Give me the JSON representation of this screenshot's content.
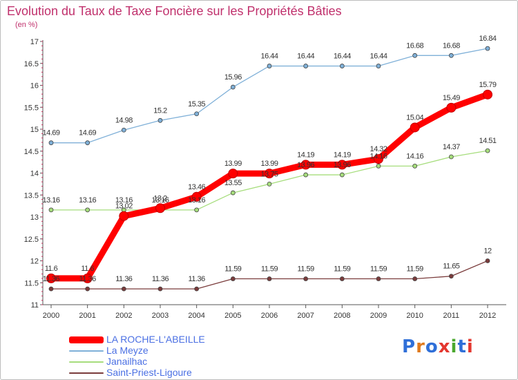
{
  "title": "Evolution du Taux de Taxe Foncière sur les Propriétés Bâties",
  "subtitle": "(en %)",
  "logo": {
    "text": "Proxiti",
    "letter_colors": [
      "#2f6fd8",
      "#e07a1e",
      "#2f6fd8",
      "#e4372f",
      "#4aa82e",
      "#2f6fd8",
      "#e4372f"
    ]
  },
  "chart_data": {
    "type": "line",
    "x": [
      "2000",
      "2001",
      "2002",
      "2003",
      "2004",
      "2005",
      "2006",
      "2007",
      "2008",
      "2009",
      "2010",
      "2011",
      "2012"
    ],
    "ylim": [
      11,
      17
    ],
    "yticks": [
      "11",
      "11.5",
      "12",
      "12.5",
      "13",
      "13.5",
      "14",
      "14.5",
      "15",
      "15.5",
      "16",
      "16.5",
      "17"
    ],
    "grid": false,
    "legend_position": "bottom-left",
    "series": [
      {
        "name": "LA ROCHE-L'ABEILLE",
        "color": "#ff0000",
        "values": [
          11.6,
          11.6,
          13.02,
          13.2,
          13.46,
          13.99,
          13.99,
          14.19,
          14.19,
          14.32,
          15.04,
          15.49,
          15.79
        ],
        "labels": [
          "11.6",
          "11.6",
          "13.02",
          "13.2",
          "13.46",
          "13.99",
          "13.99",
          "14.19",
          "14.19",
          "14.32",
          "15.04",
          "15.49",
          "15.79"
        ]
      },
      {
        "name": "La Meyze",
        "color": "#7fb0d8",
        "values": [
          14.69,
          14.69,
          14.98,
          15.2,
          15.35,
          15.96,
          16.44,
          16.44,
          16.44,
          16.44,
          16.68,
          16.68,
          16.84
        ],
        "labels": [
          "14.69",
          "14.69",
          "14.98",
          "15.2",
          "15.35",
          "15.96",
          "16.44",
          "16.44",
          "16.44",
          "16.44",
          "16.68",
          "16.68",
          "16.84"
        ]
      },
      {
        "name": "Janailhac",
        "color": "#a6dd7c",
        "values": [
          13.16,
          13.16,
          13.16,
          13.16,
          13.16,
          13.55,
          13.75,
          13.96,
          13.96,
          14.16,
          14.16,
          14.37,
          14.51
        ],
        "labels": [
          "13.16",
          "13.16",
          "13.16",
          "13.16",
          "13.16",
          "13.55",
          "13.75",
          "13.96",
          "13.96",
          "14.16",
          "14.16",
          "14.37",
          "14.51"
        ]
      },
      {
        "name": "Saint-Priest-Ligoure",
        "color": "#7a3b3b",
        "values": [
          11.36,
          11.36,
          11.36,
          11.36,
          11.36,
          11.59,
          11.59,
          11.59,
          11.59,
          11.59,
          11.59,
          11.65,
          12
        ],
        "labels": [
          "11.36",
          "11.36",
          "11.36",
          "11.36",
          "11.36",
          "11.59",
          "11.59",
          "11.59",
          "11.59",
          "11.59",
          "11.59",
          "11.65",
          "12"
        ]
      }
    ]
  }
}
